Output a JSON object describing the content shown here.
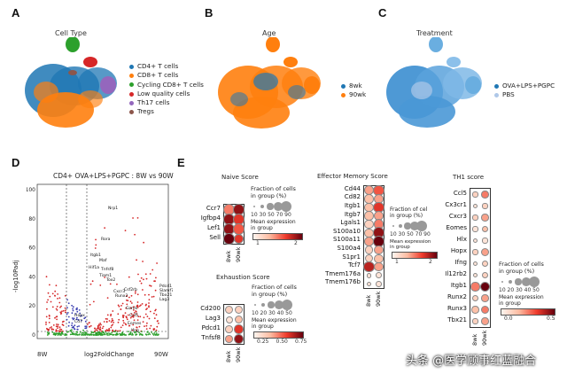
{
  "panels": {
    "a": "A",
    "b": "B",
    "c": "C",
    "d": "D",
    "e": "E"
  },
  "umap_a": {
    "title": "Cell Type",
    "legend": [
      {
        "label": "CD4+ T cells",
        "color": "#1f77b4"
      },
      {
        "label": "CD8+ T cells",
        "color": "#ff7f0e"
      },
      {
        "label": "Cycling CD8+ T cells",
        "color": "#2ca02c"
      },
      {
        "label": "Low quality cells",
        "color": "#d62728"
      },
      {
        "label": "Th17 cells",
        "color": "#9467bd"
      },
      {
        "label": "Tregs",
        "color": "#8c564b"
      }
    ]
  },
  "umap_b": {
    "title": "Age",
    "legend": [
      {
        "label": "8wk",
        "color": "#1f77b4"
      },
      {
        "label": "90wk",
        "color": "#ff7f0e"
      }
    ]
  },
  "umap_c": {
    "title": "Treatment",
    "legend": [
      {
        "label": "OVA+LPS+PGPC",
        "color": "#1f77b4"
      },
      {
        "label": "PBS",
        "color": "#aec7e8"
      }
    ]
  },
  "volcano": {
    "title": "CD4+ OVA+LPS+PGPC : 8W vs 90W",
    "ylabel": "-log10Padj",
    "xlabel": "log2FoldChange",
    "left_label": "8W",
    "right_label": "90W",
    "yticks": [
      "0",
      "20",
      "40",
      "60",
      "80",
      "100"
    ],
    "xticks": [
      "-2",
      "0",
      "2",
      "4"
    ],
    "genes": [
      "Nrp1",
      "Rora",
      "Itgb1",
      "Maf",
      "Hif1a",
      "Tnfsf8",
      "Tiam1",
      "Tox2",
      "Cxcr3",
      "Runx2",
      "Csf2rb",
      "Pdcd1",
      "Slamf7",
      "Tbx21",
      "Lag3",
      "Hopx",
      "Cd7",
      "Gzmk",
      "Ccl5",
      "Eomes",
      "Ifng"
    ]
  },
  "naive": {
    "title": "Naive Score",
    "genes": [
      "Ccr7",
      "Igfbp4",
      "Lef1",
      "Sell"
    ],
    "cols": [
      "8wk",
      "90wk"
    ],
    "size": [
      [
        85,
        80
      ],
      [
        90,
        85
      ],
      [
        90,
        80
      ],
      [
        90,
        60
      ]
    ],
    "expr": [
      [
        0.5,
        0.9
      ],
      [
        0.9,
        0.7
      ],
      [
        0.9,
        0.6
      ],
      [
        1.0,
        0.7
      ]
    ],
    "frac_label": "Fraction of cells\nin group (%)",
    "frac_ticks": "10 30 50 70 90",
    "expr_label": "Mean expression\nin group",
    "cb_ticks": [
      "1",
      "2"
    ]
  },
  "exhaustion": {
    "title": "Exhaustion Score",
    "genes": [
      "Cd200",
      "Lag3",
      "Pdcd1",
      "Tnfsf8"
    ],
    "cols": [
      "8wk",
      "90wk"
    ],
    "size": [
      [
        40,
        35
      ],
      [
        25,
        40
      ],
      [
        30,
        50
      ],
      [
        30,
        55
      ]
    ],
    "expr": [
      [
        0.2,
        0.2
      ],
      [
        0.1,
        0.3
      ],
      [
        0.2,
        0.7
      ],
      [
        0.4,
        0.9
      ]
    ],
    "frac_label": "Fraction of cells\nin group (%)",
    "frac_ticks": "10 20 30 40 50",
    "expr_label": "Mean expression\nin group",
    "cb_ticks": [
      "0.25",
      "0.50",
      "0.75"
    ]
  },
  "effector": {
    "title": "Effector Memory Score",
    "genes": [
      "Cd44",
      "Cd82",
      "Itgb1",
      "Itgb7",
      "Lgals1",
      "S100a10",
      "S100a11",
      "S100a4",
      "S1pr1",
      "Tcf7",
      "Tmem176a",
      "Tmem176b"
    ],
    "cols": [
      "8wk",
      "90wk"
    ],
    "size": [
      [
        60,
        70
      ],
      [
        50,
        60
      ],
      [
        50,
        70
      ],
      [
        50,
        60
      ],
      [
        45,
        65
      ],
      [
        50,
        80
      ],
      [
        60,
        90
      ],
      [
        35,
        50
      ],
      [
        40,
        45
      ],
      [
        70,
        50
      ],
      [
        10,
        15
      ],
      [
        10,
        15
      ]
    ],
    "expr": [
      [
        0.4,
        0.6
      ],
      [
        0.3,
        0.4
      ],
      [
        0.3,
        0.7
      ],
      [
        0.3,
        0.4
      ],
      [
        0.2,
        0.5
      ],
      [
        0.3,
        0.9
      ],
      [
        0.4,
        1.0
      ],
      [
        0.2,
        0.4
      ],
      [
        0.2,
        0.3
      ],
      [
        0.8,
        0.4
      ],
      [
        0.1,
        0.1
      ],
      [
        0.1,
        0.1
      ]
    ],
    "frac_label": "Fraction of cel\nin group (%)",
    "frac_ticks": "10 30 50 70 90",
    "expr_label": "Mean expression\nin group",
    "cb_ticks": [
      "1",
      "2"
    ]
  },
  "th1": {
    "title": "TH1 score",
    "genes": [
      "Ccl5",
      "Cx3cr1",
      "Cxcr3",
      "Eomes",
      "Hlx",
      "Hopx",
      "Ifng",
      "Il12rb2",
      "Itgb1",
      "Runx2",
      "Runx3",
      "Tbx21"
    ],
    "cols": [
      "8wk",
      "90wk"
    ],
    "size": [
      [
        10,
        25
      ],
      [
        5,
        10
      ],
      [
        10,
        25
      ],
      [
        10,
        20
      ],
      [
        5,
        10
      ],
      [
        10,
        30
      ],
      [
        5,
        15
      ],
      [
        5,
        15
      ],
      [
        40,
        55
      ],
      [
        15,
        25
      ],
      [
        25,
        35
      ],
      [
        10,
        25
      ]
    ],
    "expr": [
      [
        0.2,
        0.5
      ],
      [
        0.1,
        0.2
      ],
      [
        0.2,
        0.4
      ],
      [
        0.1,
        0.3
      ],
      [
        0.1,
        0.1
      ],
      [
        0.2,
        0.4
      ],
      [
        0.1,
        0.2
      ],
      [
        0.1,
        0.2
      ],
      [
        0.5,
        1.0
      ],
      [
        0.2,
        0.4
      ],
      [
        0.3,
        0.5
      ],
      [
        0.2,
        0.4
      ]
    ],
    "frac_label": "Fraction of cells\nin group (%)",
    "frac_ticks": "10 20 30 40 50",
    "expr_label": "Mean expression\nin group",
    "cb_ticks": [
      "0.0",
      "0.5"
    ]
  },
  "watermark": "头条 @医学顾事红蓝融合"
}
